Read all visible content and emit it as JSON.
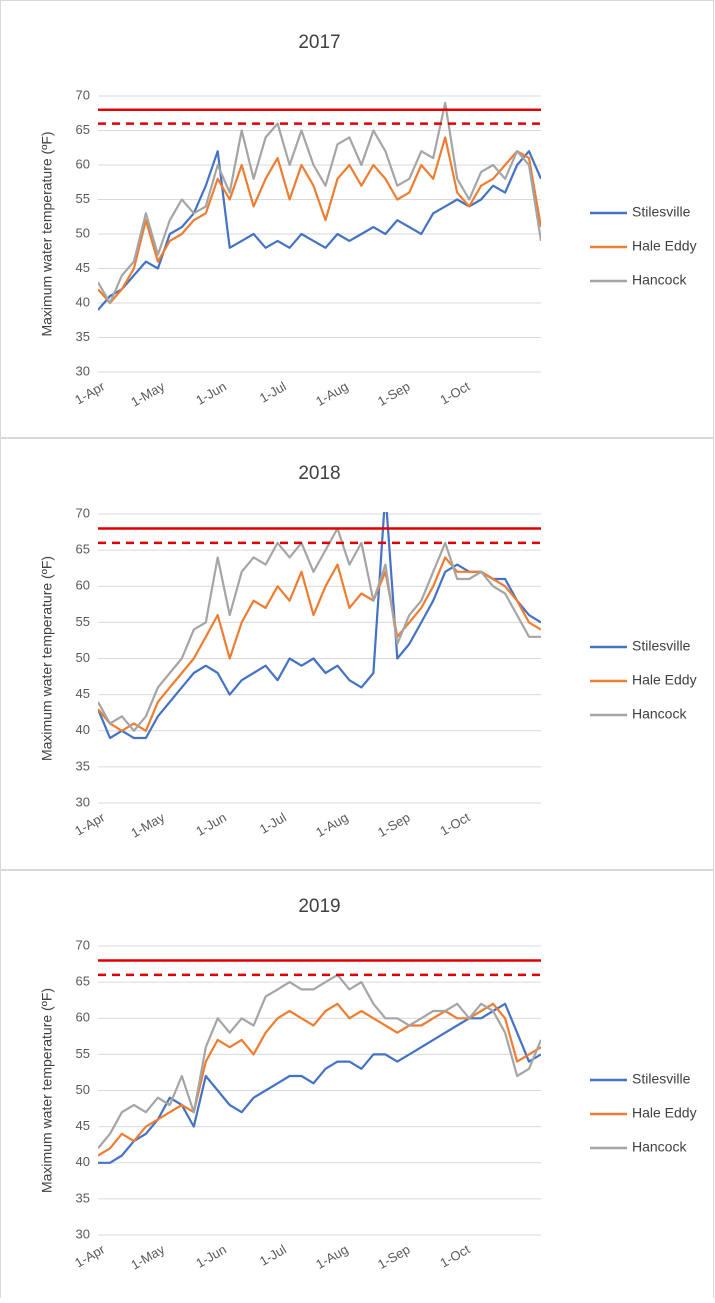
{
  "chart_data": [
    {
      "type": "line",
      "title": "2017",
      "y_label": "Maximum water temperature (ºF)",
      "ylim": [
        30,
        70
      ],
      "yticks": [
        30,
        35,
        40,
        45,
        50,
        55,
        60,
        65,
        70
      ],
      "xlim": [
        0,
        222
      ],
      "xticks": [
        {
          "value": 0,
          "label": "1-Apr"
        },
        {
          "value": 30,
          "label": "1-May"
        },
        {
          "value": 61,
          "label": "1-Jun"
        },
        {
          "value": 91,
          "label": "1-Jul"
        },
        {
          "value": 122,
          "label": "1-Aug"
        },
        {
          "value": 153,
          "label": "1-Sep"
        },
        {
          "value": 183,
          "label": "1-Oct"
        }
      ],
      "grid": true,
      "legend": "right",
      "reference_lines": [
        {
          "value": 68,
          "style": "solid",
          "color": "#e00000"
        },
        {
          "value": 66,
          "style": "dashed",
          "color": "#e00000"
        }
      ],
      "x": [
        0,
        6,
        12,
        18,
        24,
        30,
        36,
        42,
        48,
        54,
        60,
        66,
        72,
        78,
        84,
        90,
        96,
        102,
        108,
        114,
        120,
        126,
        132,
        138,
        144,
        150,
        156,
        162,
        168,
        174,
        180,
        186,
        192,
        198,
        204,
        210,
        216,
        222
      ],
      "series": [
        {
          "name": "Stilesville",
          "color": "#4472c4",
          "values": [
            39,
            41,
            42,
            44,
            46,
            45,
            50,
            51,
            53,
            57,
            62,
            48,
            49,
            50,
            48,
            49,
            48,
            50,
            49,
            48,
            50,
            49,
            50,
            51,
            50,
            52,
            51,
            50,
            53,
            54,
            55,
            54,
            55,
            57,
            56,
            60,
            62,
            58
          ]
        },
        {
          "name": "Hale Eddy",
          "color": "#ed7d31",
          "values": [
            42,
            40,
            42,
            45,
            52,
            46,
            49,
            50,
            52,
            53,
            58,
            55,
            60,
            54,
            58,
            61,
            55,
            60,
            57,
            52,
            58,
            60,
            57,
            60,
            58,
            55,
            56,
            60,
            58,
            64,
            56,
            54,
            57,
            58,
            60,
            62,
            61,
            51
          ]
        },
        {
          "name": "Hancock",
          "color": "#a5a5a5",
          "values": [
            43,
            40,
            44,
            46,
            53,
            47,
            52,
            55,
            53,
            54,
            60,
            56,
            65,
            58,
            64,
            66,
            60,
            65,
            60,
            57,
            63,
            64,
            60,
            65,
            62,
            57,
            58,
            62,
            61,
            69,
            58,
            55,
            59,
            60,
            58,
            62,
            60,
            49
          ]
        }
      ]
    },
    {
      "type": "line",
      "title": "2018",
      "y_label": "Maximum water temperature (ºF)",
      "ylim": [
        30,
        70
      ],
      "yticks": [
        30,
        35,
        40,
        45,
        50,
        55,
        60,
        65,
        70
      ],
      "xlim": [
        0,
        222
      ],
      "xticks": [
        {
          "value": 0,
          "label": "1-Apr"
        },
        {
          "value": 30,
          "label": "1-May"
        },
        {
          "value": 61,
          "label": "1-Jun"
        },
        {
          "value": 91,
          "label": "1-Jul"
        },
        {
          "value": 122,
          "label": "1-Aug"
        },
        {
          "value": 153,
          "label": "1-Sep"
        },
        {
          "value": 183,
          "label": "1-Oct"
        }
      ],
      "grid": true,
      "legend": "right",
      "reference_lines": [
        {
          "value": 68,
          "style": "solid",
          "color": "#e00000"
        },
        {
          "value": 66,
          "style": "dashed",
          "color": "#e00000"
        }
      ],
      "x": [
        0,
        6,
        12,
        18,
        24,
        30,
        36,
        42,
        48,
        54,
        60,
        66,
        72,
        78,
        84,
        90,
        96,
        102,
        108,
        114,
        120,
        126,
        132,
        138,
        144,
        150,
        156,
        162,
        168,
        174,
        180,
        186,
        192,
        198,
        204,
        210,
        216,
        222
      ],
      "series": [
        {
          "name": "Stilesville",
          "color": "#4472c4",
          "values": [
            43,
            39,
            40,
            39,
            39,
            42,
            44,
            46,
            48,
            49,
            48,
            45,
            47,
            48,
            49,
            47,
            50,
            49,
            50,
            48,
            49,
            47,
            46,
            48,
            73,
            50,
            52,
            55,
            58,
            62,
            63,
            62,
            62,
            61,
            61,
            58,
            56,
            55
          ]
        },
        {
          "name": "Hale Eddy",
          "color": "#ed7d31",
          "values": [
            43,
            41,
            40,
            41,
            40,
            44,
            46,
            48,
            50,
            53,
            56,
            50,
            55,
            58,
            57,
            60,
            58,
            62,
            56,
            60,
            63,
            57,
            59,
            58,
            62,
            53,
            55,
            57,
            60,
            64,
            62,
            62,
            62,
            61,
            60,
            58,
            55,
            54
          ]
        },
        {
          "name": "Hancock",
          "color": "#a5a5a5",
          "values": [
            44,
            41,
            42,
            40,
            42,
            46,
            48,
            50,
            54,
            55,
            64,
            56,
            62,
            64,
            63,
            66,
            64,
            66,
            62,
            65,
            68,
            63,
            66,
            58,
            63,
            52,
            56,
            58,
            62,
            66,
            61,
            61,
            62,
            60,
            59,
            56,
            53,
            53
          ]
        }
      ]
    },
    {
      "type": "line",
      "title": "2019",
      "y_label": "Maximum water temperature (ºF)",
      "ylim": [
        30,
        70
      ],
      "yticks": [
        30,
        35,
        40,
        45,
        50,
        55,
        60,
        65,
        70
      ],
      "xlim": [
        0,
        222
      ],
      "xticks": [
        {
          "value": 0,
          "label": "1-Apr"
        },
        {
          "value": 30,
          "label": "1-May"
        },
        {
          "value": 61,
          "label": "1-Jun"
        },
        {
          "value": 91,
          "label": "1-Jul"
        },
        {
          "value": 122,
          "label": "1-Aug"
        },
        {
          "value": 153,
          "label": "1-Sep"
        },
        {
          "value": 183,
          "label": "1-Oct"
        }
      ],
      "grid": true,
      "legend": "right",
      "reference_lines": [
        {
          "value": 68,
          "style": "solid",
          "color": "#e00000"
        },
        {
          "value": 66,
          "style": "dashed",
          "color": "#e00000"
        }
      ],
      "x": [
        0,
        6,
        12,
        18,
        24,
        30,
        36,
        42,
        48,
        54,
        60,
        66,
        72,
        78,
        84,
        90,
        96,
        102,
        108,
        114,
        120,
        126,
        132,
        138,
        144,
        150,
        156,
        162,
        168,
        174,
        180,
        186,
        192,
        198,
        204,
        210,
        216,
        222
      ],
      "series": [
        {
          "name": "Stilesville",
          "color": "#4472c4",
          "values": [
            40,
            40,
            41,
            43,
            44,
            46,
            49,
            48,
            45,
            52,
            50,
            48,
            47,
            49,
            50,
            51,
            52,
            52,
            51,
            53,
            54,
            54,
            53,
            55,
            55,
            54,
            55,
            56,
            57,
            58,
            59,
            60,
            60,
            61,
            62,
            58,
            54,
            55
          ]
        },
        {
          "name": "Hale Eddy",
          "color": "#ed7d31",
          "values": [
            41,
            42,
            44,
            43,
            45,
            46,
            47,
            48,
            47,
            54,
            57,
            56,
            57,
            55,
            58,
            60,
            61,
            60,
            59,
            61,
            62,
            60,
            61,
            60,
            59,
            58,
            59,
            59,
            60,
            61,
            60,
            60,
            61,
            62,
            60,
            54,
            55,
            56
          ]
        },
        {
          "name": "Hancock",
          "color": "#a5a5a5",
          "values": [
            42,
            44,
            47,
            48,
            47,
            49,
            48,
            52,
            47,
            56,
            60,
            58,
            60,
            59,
            63,
            64,
            65,
            64,
            64,
            65,
            66,
            64,
            65,
            62,
            60,
            60,
            59,
            60,
            61,
            61,
            62,
            60,
            62,
            61,
            58,
            52,
            53,
            57
          ]
        }
      ]
    }
  ]
}
